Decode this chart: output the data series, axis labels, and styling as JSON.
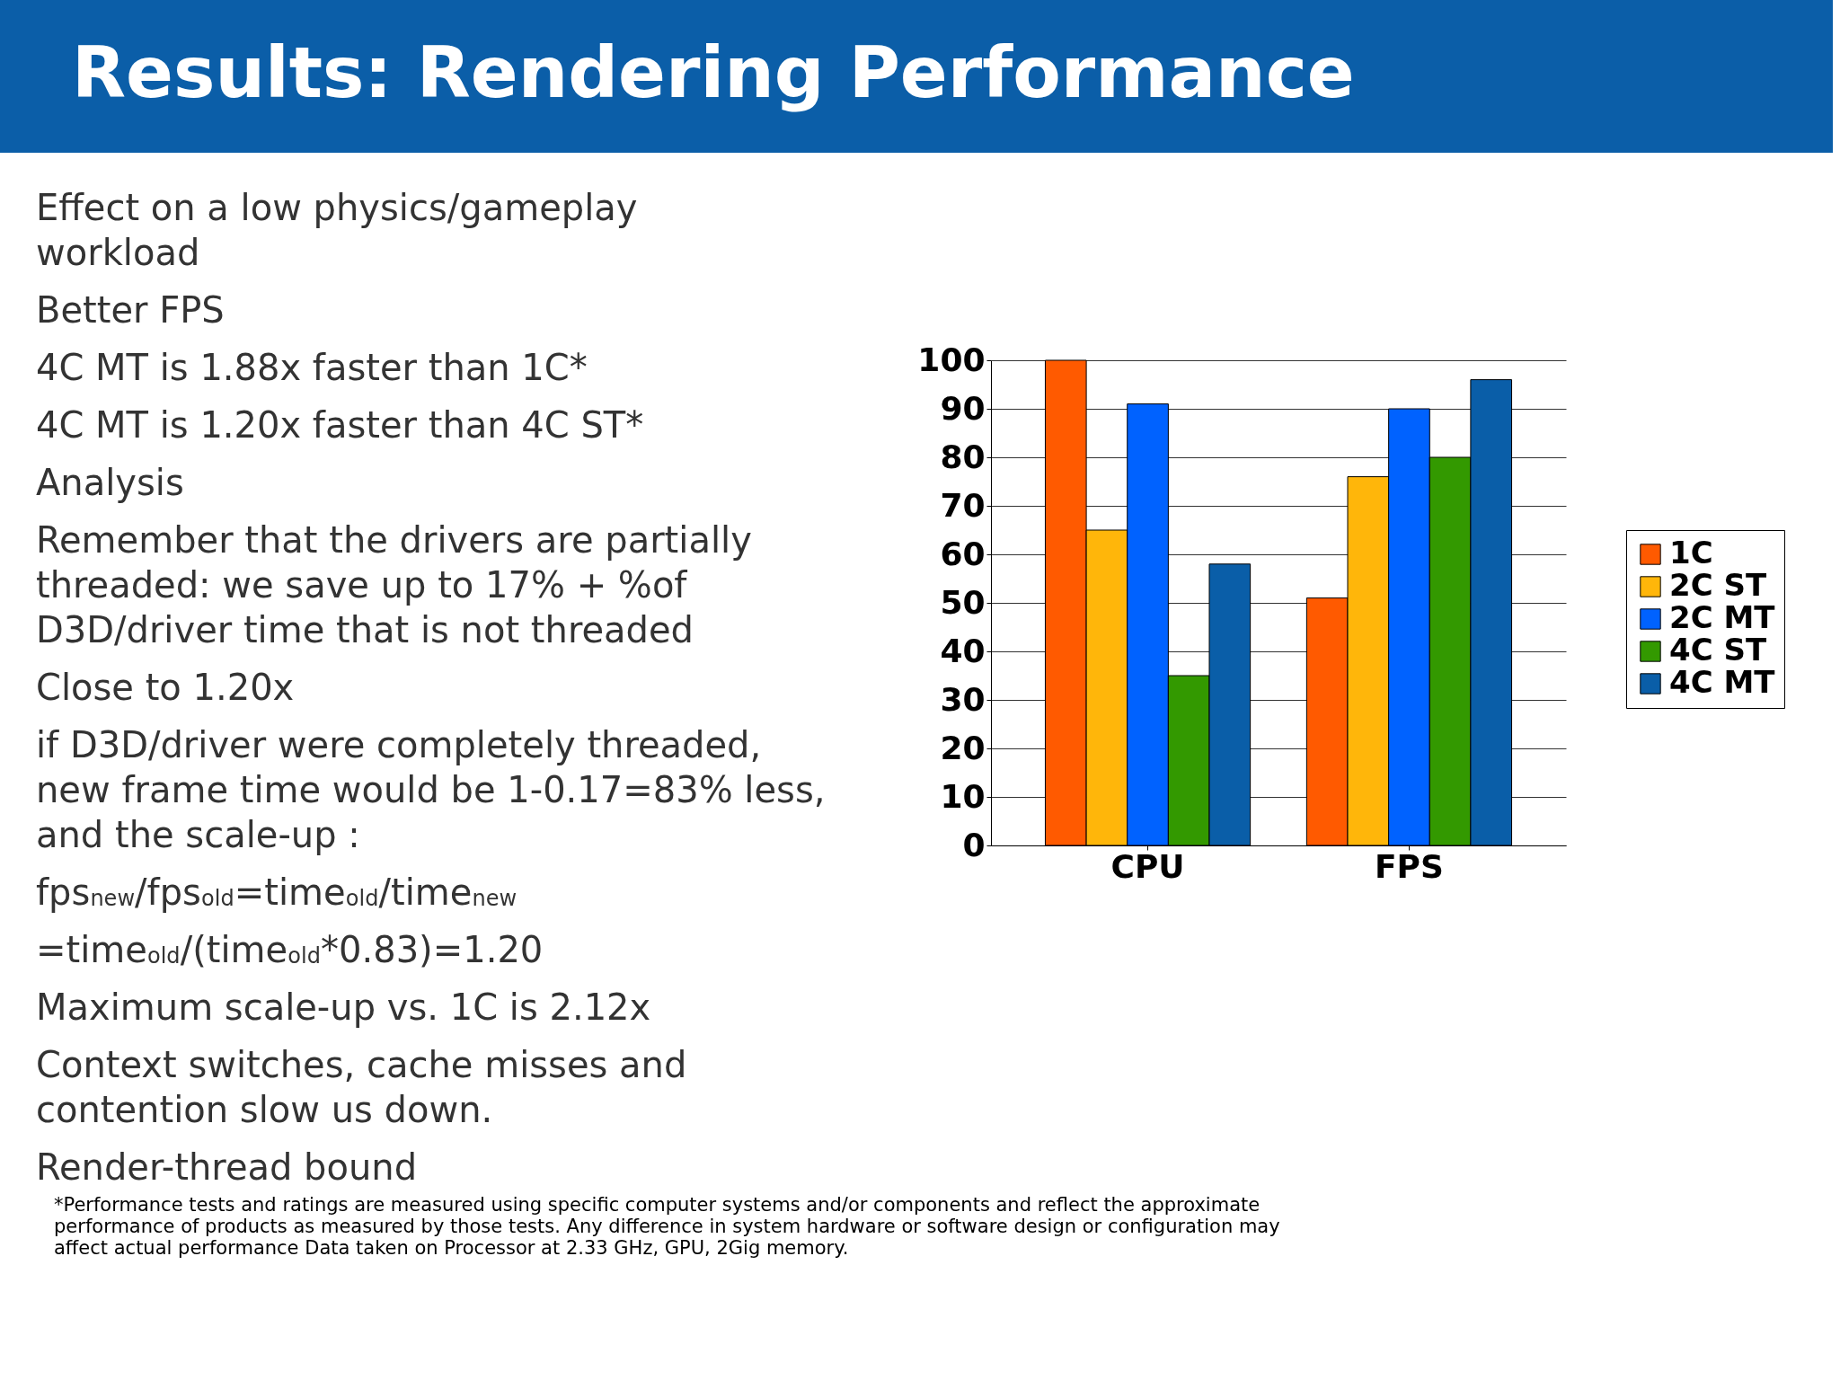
{
  "chart_data": {
    "type": "bar",
    "title": "Results: Rendering Performance",
    "categories": [
      "CPU",
      "FPS"
    ],
    "series": [
      {
        "name": "1C",
        "color": "#ff5a00",
        "values": [
          100,
          51
        ]
      },
      {
        "name": "2C ST",
        "color": "#ffb60a",
        "values": [
          65,
          76
        ]
      },
      {
        "name": "2C MT",
        "color": "#0062ff",
        "values": [
          91,
          90
        ]
      },
      {
        "name": "4C ST",
        "color": "#339900",
        "values": [
          35,
          80
        ]
      },
      {
        "name": "4C MT",
        "color": "#0a5ea8",
        "values": [
          58,
          96
        ]
      }
    ],
    "ylim": [
      0,
      100
    ],
    "yticks": [
      0,
      10,
      20,
      30,
      40,
      50,
      60,
      70,
      80,
      90,
      100
    ],
    "grid": "y",
    "legend": "right",
    "annotations": [
      "Effect on a low physics/gameplay workload",
      "Better FPS",
      "4C MT is 1.88x faster than 1C*",
      "4C MT is 1.20x faster than 4C ST*",
      "Analysis",
      "Remember that the drivers are partially threaded: we save up to 17% + %of D3D/driver time that is not threaded",
      "Close to 1.20x",
      "if D3D/driver were completely threaded, new frame time would be 1-0.17=83% less, and the scale-up :",
      "fps$_{new}$/fps$_{old}$=time$_{old}$/time$_{new}$",
      "=time$_{old}$/(time$_{old}$*0.83)=1.20",
      "Maximum scale-up vs. 1C is 2.12x",
      "Context switches, cache misses and contention slow us down.",
      "Render-thread bound",
      "*Performance tests and ratings are measured using specific computer systems and/or components and reflect the approximate performance of products as measured by those tests. Any difference in system hardware or software design or configuration may affect actual performance Data taken on Processor at 2.33 GHz, GPU, 2Gig memory."
    ]
  }
}
